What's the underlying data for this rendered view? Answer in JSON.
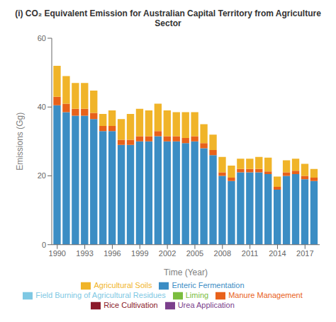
{
  "chart_data": {
    "type": "bar",
    "title": "(i) CO₂ Equivalent Emission for Australian Capital Territory from Agriculture Sector",
    "xlabel": "Time (Year)",
    "ylabel": "Emissions (Gg)",
    "x": [
      1990,
      1991,
      1992,
      1993,
      1994,
      1995,
      1996,
      1997,
      1998,
      1999,
      2000,
      2001,
      2002,
      2003,
      2004,
      2005,
      2006,
      2007,
      2008,
      2009,
      2010,
      2011,
      2012,
      2013,
      2014,
      2015,
      2016,
      2017,
      2018
    ],
    "xlim": [
      1989.4,
      2018.6
    ],
    "xticks": [
      1990,
      1993,
      1996,
      1999,
      2002,
      2005,
      2008,
      2011,
      2014,
      2017
    ],
    "ylim": [
      0,
      60
    ],
    "yticks": [
      0,
      20,
      40,
      60
    ],
    "stacked": true,
    "grid": false,
    "legend": "bottom",
    "series": [
      {
        "name": "Enteric Fermentation",
        "color": "#3B8DC4",
        "values": [
          40.5,
          38.5,
          37.5,
          37.5,
          36.5,
          33.0,
          33.0,
          29.0,
          29.0,
          30.0,
          30.0,
          31.5,
          30.0,
          30.0,
          29.5,
          30.0,
          28.0,
          26.0,
          20.0,
          18.5,
          21.0,
          21.0,
          21.0,
          20.5,
          16.0,
          20.0,
          20.5,
          19.0,
          18.5
        ]
      },
      {
        "name": "Manure Management",
        "color": "#E8611A",
        "values": [
          2.5,
          2.5,
          2.0,
          2.0,
          1.8,
          1.5,
          1.5,
          1.5,
          1.5,
          1.5,
          1.5,
          1.5,
          1.5,
          1.5,
          1.5,
          1.5,
          1.5,
          1.5,
          1.0,
          1.0,
          1.0,
          1.0,
          1.0,
          0.8,
          0.8,
          1.0,
          1.0,
          1.0,
          1.0
        ]
      },
      {
        "name": "Agricultural Soils",
        "color": "#F0B429",
        "values": [
          9.0,
          8.0,
          7.5,
          7.5,
          6.5,
          3.5,
          4.5,
          6.0,
          7.5,
          8.0,
          7.5,
          8.0,
          7.5,
          7.0,
          7.5,
          7.0,
          5.5,
          4.5,
          4.5,
          3.5,
          3.0,
          3.0,
          3.5,
          4.0,
          3.0,
          3.5,
          3.5,
          3.5,
          2.5
        ]
      },
      {
        "name": "Urea Application",
        "color": "#7B3F8C",
        "values": [
          0.0,
          0.0,
          0.0,
          0.0,
          0.0,
          0.0,
          0.0,
          0.0,
          0.0,
          0.0,
          0.0,
          0.0,
          0.0,
          0.0,
          0.0,
          0.0,
          0.0,
          0.0,
          0.0,
          0.0,
          0.0,
          0.0,
          0.0,
          0.0,
          0.0,
          0.0,
          0.0,
          0.0,
          0.0
        ]
      },
      {
        "name": "Liming",
        "color": "#7BBD3E",
        "values": [
          0.0,
          0.0,
          0.0,
          0.0,
          0.0,
          0.0,
          0.0,
          0.0,
          0.0,
          0.0,
          0.0,
          0.0,
          0.0,
          0.0,
          0.0,
          0.0,
          0.0,
          0.0,
          0.0,
          0.0,
          0.0,
          0.0,
          0.0,
          0.0,
          0.0,
          0.0,
          0.0,
          0.0,
          0.0
        ]
      },
      {
        "name": "Field Burning of Agricultural Residues",
        "color": "#7EC8E3",
        "values": [
          0.0,
          0.0,
          0.0,
          0.0,
          0.0,
          0.0,
          0.0,
          0.0,
          0.0,
          0.0,
          0.0,
          0.0,
          0.0,
          0.0,
          0.0,
          0.0,
          0.0,
          0.0,
          0.0,
          0.0,
          0.0,
          0.0,
          0.0,
          0.0,
          0.0,
          0.0,
          0.0,
          0.0,
          0.0
        ]
      },
      {
        "name": "Rice Cultivation",
        "color": "#8B1A2A",
        "values": [
          0.0,
          0.0,
          0.0,
          0.0,
          0.0,
          0.0,
          0.0,
          0.0,
          0.0,
          0.0,
          0.0,
          0.0,
          0.0,
          0.0,
          0.0,
          0.0,
          0.0,
          0.0,
          0.0,
          0.0,
          0.0,
          0.0,
          0.0,
          0.0,
          0.0,
          0.0,
          0.0,
          0.0,
          0.0
        ]
      }
    ]
  }
}
